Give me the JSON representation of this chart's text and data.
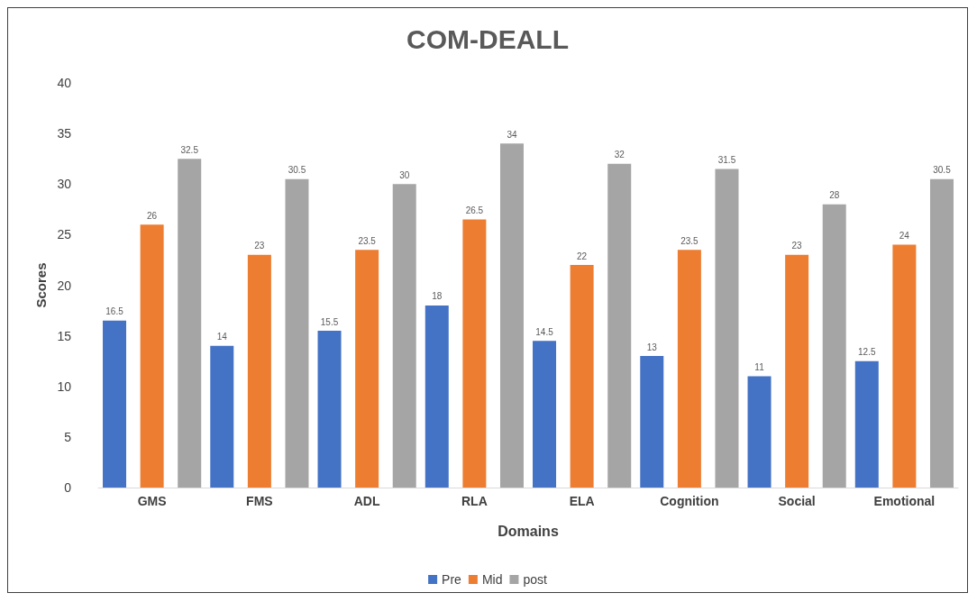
{
  "chart_data": {
    "type": "bar",
    "title": "COM-DEALL",
    "xlabel": "Domains",
    "ylabel": "Scores",
    "categories": [
      "GMS",
      "FMS",
      "ADL",
      "RLA",
      "ELA",
      "Cognition",
      "Social",
      "Emotional"
    ],
    "series": [
      {
        "name": "Pre",
        "color": "#4472c4",
        "values": [
          16.5,
          14,
          15.5,
          18,
          14.5,
          13,
          11,
          12.5
        ]
      },
      {
        "name": "Mid",
        "color": "#ed7d31",
        "values": [
          26,
          23,
          23.5,
          26.5,
          22,
          23.5,
          23,
          24
        ]
      },
      {
        "name": "post",
        "color": "#a5a5a5",
        "values": [
          32.5,
          30.5,
          30,
          34,
          32,
          31.5,
          28,
          30.5
        ]
      }
    ],
    "ylim": [
      0,
      40
    ],
    "yticks": [
      0,
      5,
      10,
      15,
      20,
      25,
      30,
      35,
      40
    ],
    "grid": false,
    "legend": "bottom",
    "data_labels": true
  }
}
